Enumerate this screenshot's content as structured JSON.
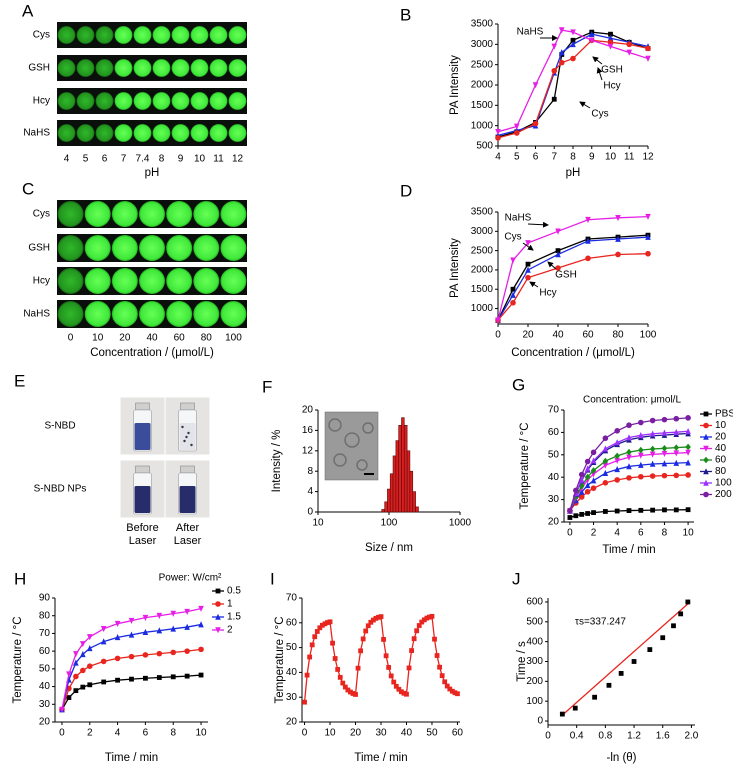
{
  "chart_data": [
    {
      "type": "image-grid",
      "label": "A",
      "rows": [
        "Cys",
        "GSH",
        "Hcy",
        "NaHS"
      ],
      "columns": [
        "4",
        "5",
        "6",
        "7",
        "7.4",
        "8",
        "9",
        "10",
        "11",
        "12"
      ],
      "xlabel": "pH"
    },
    {
      "type": "line",
      "label": "B",
      "x": [
        4,
        5,
        6,
        7,
        7.4,
        8,
        9,
        10,
        11,
        12
      ],
      "xlim": [
        4,
        12
      ],
      "xticks": [
        4,
        5,
        6,
        7,
        8,
        9,
        10,
        11,
        12
      ],
      "ylim": [
        500,
        3500
      ],
      "yticks": [
        500,
        1000,
        1500,
        2000,
        2500,
        3000,
        3500
      ],
      "xlabel": "pH",
      "ylabel": "PA Intensity",
      "series": [
        {
          "color": "#000000",
          "marker": "square",
          "values": [
            720,
            850,
            1080,
            1650,
            2750,
            3100,
            3300,
            3250,
            3050,
            2900
          ]
        },
        {
          "color": "#1a2be0",
          "marker": "triangle",
          "values": [
            760,
            880,
            1000,
            2300,
            2800,
            3000,
            3250,
            3150,
            3050,
            2950
          ]
        },
        {
          "color": "#e8251f",
          "marker": "circle",
          "values": [
            700,
            820,
            1050,
            2350,
            2550,
            2650,
            3100,
            3050,
            3000,
            2900
          ]
        },
        {
          "color": "#e61ee6",
          "marker": "triangle-down",
          "values": [
            850,
            980,
            2000,
            2950,
            3350,
            3300,
            3100,
            2950,
            2800,
            2650
          ]
        }
      ],
      "annotations": [
        "NaHS",
        "GSH",
        "Hcy",
        "Cys"
      ]
    },
    {
      "type": "image-grid",
      "label": "C",
      "rows": [
        "Cys",
        "GSH",
        "Hcy",
        "NaHS"
      ],
      "columns": [
        "0",
        "10",
        "20",
        "40",
        "60",
        "80",
        "100"
      ],
      "xlabel": "Concentration / (μmol/L)"
    },
    {
      "type": "line",
      "label": "D",
      "x": [
        0,
        10,
        20,
        40,
        60,
        80,
        100
      ],
      "xlim": [
        0,
        100
      ],
      "xticks": [
        0,
        20,
        40,
        60,
        80,
        100
      ],
      "ylim": [
        600,
        3500
      ],
      "yticks": [
        1000,
        1500,
        2000,
        2500,
        3000,
        3500
      ],
      "xlabel": "Concentration / (μmol/L)",
      "ylabel": "PA Intensity",
      "series": [
        {
          "color": "#000000",
          "marker": "square",
          "values": [
            700,
            1500,
            2150,
            2500,
            2800,
            2850,
            2900
          ]
        },
        {
          "color": "#1a2be0",
          "marker": "triangle",
          "values": [
            700,
            1350,
            2000,
            2400,
            2750,
            2800,
            2850
          ]
        },
        {
          "color": "#e8251f",
          "marker": "circle",
          "values": [
            700,
            1150,
            1800,
            2050,
            2300,
            2400,
            2420
          ]
        },
        {
          "color": "#e61ee6",
          "marker": "triangle-down",
          "values": [
            700,
            2250,
            2700,
            3000,
            3300,
            3350,
            3380
          ]
        }
      ],
      "annotations": [
        "NaHS",
        "Cys",
        "GSH",
        "Hcy"
      ]
    },
    {
      "type": "photo-grid",
      "label": "E",
      "rows": [
        "S-NBD",
        "S-NBD NPs"
      ],
      "columns": [
        "Before Laser",
        "After Laser"
      ]
    },
    {
      "type": "histogram",
      "label": "F",
      "xscale": "log",
      "bins": [
        79,
        87,
        95,
        104,
        114,
        125,
        137,
        150,
        164,
        180,
        197,
        216,
        237,
        260
      ],
      "values": [
        0.5,
        2,
        4.5,
        7.5,
        11,
        14,
        17,
        18.5,
        17,
        12,
        8,
        4,
        1
      ],
      "color": "#d91f1f",
      "xlim": [
        10,
        1000
      ],
      "xticks": [
        10,
        100,
        1000
      ],
      "ylim": [
        0,
        20
      ],
      "yticks": [
        0,
        4,
        8,
        12,
        16,
        20
      ],
      "xlabel": "Size / nm",
      "ylabel": "Intensity / %"
    },
    {
      "type": "line",
      "label": "G",
      "x": [
        0,
        0.5,
        1,
        1.5,
        2,
        3,
        4,
        5,
        6,
        7,
        8,
        9,
        10
      ],
      "xlim": [
        -0.5,
        10.5
      ],
      "xticks": [
        0,
        2,
        4,
        6,
        8,
        10
      ],
      "ylim": [
        20,
        70
      ],
      "yticks": [
        20,
        30,
        40,
        50,
        60,
        70
      ],
      "xlabel": "Time / min",
      "ylabel": "Temperature / °C",
      "legend_title": "Concentration: μmol/L",
      "series": [
        {
          "name": "PBS",
          "color": "#000000",
          "marker": "square",
          "values": [
            22,
            22.8,
            23.4,
            23.8,
            24.2,
            24.7,
            24.9,
            25.1,
            25.2,
            25.3,
            25.4,
            25.4,
            25.5
          ]
        },
        {
          "name": "10",
          "color": "#e8251f",
          "marker": "circle",
          "values": [
            25,
            28.5,
            31.2,
            33.5,
            35.1,
            37.5,
            38.8,
            39.7,
            40.2,
            40.5,
            40.7,
            40.8,
            41
          ]
        },
        {
          "name": "20",
          "color": "#1a2be0",
          "marker": "triangle",
          "values": [
            25,
            29.7,
            33.4,
            36.4,
            38.5,
            41.8,
            43.5,
            44.8,
            45.4,
            45.9,
            46.1,
            46.3,
            46.5
          ]
        },
        {
          "name": "40",
          "color": "#e61ee6",
          "marker": "triangle-down",
          "values": [
            25,
            30.7,
            35.1,
            38.8,
            41.4,
            45.3,
            47.4,
            48.9,
            49.7,
            50.2,
            50.5,
            50.7,
            51
          ]
        },
        {
          "name": "60",
          "color": "#1a8c1a",
          "marker": "diamond",
          "values": [
            25,
            31.3,
            36.1,
            40.1,
            43,
            47.2,
            49.5,
            51.2,
            52.1,
            52.6,
            52.9,
            53.2,
            53.5
          ]
        },
        {
          "name": "80",
          "color": "#1c1c8c",
          "marker": "triangle",
          "values": [
            25,
            32.6,
            38.5,
            43.3,
            46.7,
            51.9,
            54.7,
            56.7,
            57.8,
            58.5,
            58.8,
            59.2,
            59.5
          ]
        },
        {
          "name": "100",
          "color": "#9b30ff",
          "marker": "triangle",
          "values": [
            25,
            32.8,
            38.8,
            43.8,
            47.4,
            52.7,
            55.5,
            57.7,
            58.7,
            59.4,
            59.8,
            60.1,
            60.5
          ]
        },
        {
          "name": "200",
          "color": "#7b1fa2",
          "marker": "circle",
          "values": [
            25,
            34.1,
            41.2,
            47,
            51.1,
            57.4,
            60.7,
            63.2,
            64.4,
            65.3,
            65.7,
            66.1,
            66.5
          ]
        }
      ]
    },
    {
      "type": "line",
      "label": "H",
      "x": [
        0,
        0.5,
        1,
        1.5,
        2,
        3,
        4,
        5,
        6,
        7,
        8,
        9,
        10
      ],
      "xlim": [
        -0.5,
        10.5
      ],
      "xticks": [
        0,
        2,
        4,
        6,
        8,
        10
      ],
      "ylim": [
        20,
        90
      ],
      "yticks": [
        20,
        30,
        40,
        50,
        60,
        70,
        80,
        90
      ],
      "xlabel": "Time / min",
      "ylabel": "Temperature / °C",
      "legend_title": "Power: W/cm²",
      "series": [
        {
          "name": "0.5",
          "color": "#000000",
          "marker": "square",
          "values": [
            27,
            33.8,
            37.7,
            39.7,
            41,
            42.6,
            43.6,
            44.2,
            44.7,
            45.1,
            45.5,
            45.9,
            46.5
          ]
        },
        {
          "name": "1",
          "color": "#e8251f",
          "marker": "circle",
          "values": [
            27,
            38.9,
            45.7,
            49.1,
            51.5,
            54.2,
            55.9,
            56.9,
            57.9,
            58.6,
            59.3,
            60,
            61
          ]
        },
        {
          "name": "1.5",
          "color": "#1a2be0",
          "marker": "triangle",
          "values": [
            27,
            43.8,
            53.4,
            58.2,
            61.6,
            65.4,
            67.8,
            69.2,
            70.7,
            71.6,
            72.6,
            73.6,
            75
          ]
        },
        {
          "name": "2",
          "color": "#e61ee6",
          "marker": "triangle-down",
          "values": [
            27,
            47,
            58.4,
            64.1,
            68,
            72.6,
            75.5,
            77.2,
            78.9,
            80,
            81.2,
            82.3,
            84
          ]
        }
      ]
    },
    {
      "type": "line",
      "label": "I",
      "x": [
        0,
        1,
        2,
        3,
        4,
        5,
        6,
        7,
        8,
        9,
        10,
        11,
        12,
        13,
        14,
        15,
        16,
        17,
        18,
        19,
        20,
        21,
        22,
        23,
        24,
        25,
        26,
        27,
        28,
        29,
        30,
        31,
        32,
        33,
        34,
        35,
        36,
        37,
        38,
        39,
        40,
        41,
        42,
        43,
        44,
        45,
        46,
        47,
        48,
        49,
        50,
        51,
        52,
        53,
        54,
        55,
        56,
        57,
        58,
        59,
        60
      ],
      "xlim": [
        -1,
        61
      ],
      "xticks": [
        0,
        10,
        20,
        30,
        40,
        50,
        60
      ],
      "ylim": [
        20,
        70
      ],
      "yticks": [
        20,
        30,
        40,
        50,
        60,
        70
      ],
      "xlabel": "Time / min",
      "ylabel": "Temperature / °C",
      "series": [
        {
          "color": "#e8251f",
          "marker": "square",
          "values": [
            28,
            38.9,
            46.2,
            51.1,
            54.4,
            56.5,
            58,
            59,
            59.6,
            60.1,
            60.4,
            51.8,
            45.6,
            41.2,
            38,
            35.7,
            34.1,
            32.9,
            32.1,
            31.5,
            31.1,
            41.7,
            48.7,
            53.5,
            56.7,
            58.8,
            60.2,
            61.1,
            61.8,
            62.2,
            62.5,
            53.3,
            46.7,
            42,
            38.6,
            36.1,
            34.4,
            33.2,
            32.2,
            31.6,
            31.2,
            41.8,
            48.8,
            53.6,
            56.8,
            58.9,
            60.3,
            61.2,
            61.9,
            62.3,
            62.6,
            53.4,
            46.8,
            42.1,
            38.7,
            36.2,
            34.5,
            33.3,
            32.4,
            31.8,
            31.4
          ]
        }
      ]
    },
    {
      "type": "scatter",
      "label": "J",
      "x": [
        0.2,
        0.38,
        0.65,
        0.85,
        1.02,
        1.2,
        1.42,
        1.6,
        1.75,
        1.85,
        1.95
      ],
      "values": [
        35,
        65,
        120,
        180,
        240,
        300,
        360,
        420,
        480,
        540,
        600
      ],
      "color": "#000000",
      "fit": {
        "x": [
          0.2,
          1.98
        ],
        "values": [
          30,
          600
        ],
        "color": "#e8251f"
      },
      "xlim": [
        0,
        2.05
      ],
      "xticks": [
        0,
        0.4,
        0.8,
        1.2,
        1.6,
        {
          "value": 2,
          "label": "2.0"
        }
      ],
      "ylim": [
        -20,
        620
      ],
      "yticks": [
        0,
        100,
        200,
        300,
        400,
        500,
        600
      ],
      "xlabel": "-ln (θ)",
      "ylabel": "Time / s",
      "annotation": "τs=337.247"
    }
  ]
}
